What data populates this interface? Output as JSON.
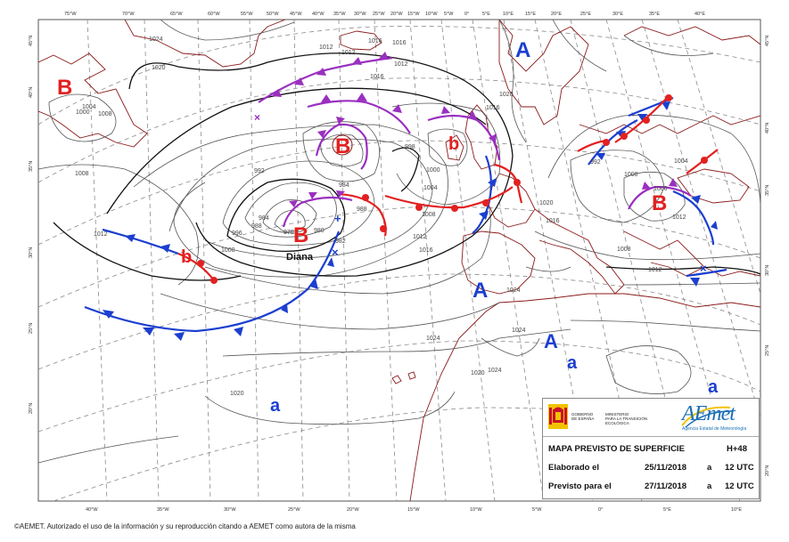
{
  "map": {
    "pressure_centers": [
      {
        "type": "B",
        "color": "#e32020",
        "size": "large"
      },
      {
        "type": "B",
        "color": "#e32020",
        "size": "large",
        "mark": "circled"
      },
      {
        "type": "b",
        "color": "#e32020",
        "size": "small"
      },
      {
        "type": "B",
        "color": "#e32020",
        "size": "large"
      },
      {
        "type": "b",
        "color": "#e32020",
        "size": "small"
      },
      {
        "type": "B",
        "color": "#e32020",
        "size": "large"
      },
      {
        "type": "A",
        "color": "#1b3fd0",
        "size": "large"
      },
      {
        "type": "A",
        "color": "#1b3fd0",
        "size": "large"
      },
      {
        "type": "A",
        "color": "#1b3fd0",
        "size": "large"
      },
      {
        "type": "a",
        "color": "#1b3fd0",
        "size": "small"
      },
      {
        "type": "a",
        "color": "#1b3fd0",
        "size": "small"
      },
      {
        "type": "a",
        "color": "#1b3fd0",
        "size": "small"
      }
    ],
    "storm_name": "Diana",
    "isobar_labels": [
      "1024",
      "1020",
      "1008",
      "1004",
      "1000",
      "1008",
      "1012",
      "1016",
      "1016",
      "1012",
      "998",
      "1000",
      "1004",
      "1008",
      "996",
      "992",
      "988",
      "984",
      "980",
      "984",
      "988",
      "976",
      "982",
      "1000",
      "1012",
      "1016",
      "1020",
      "1024",
      "1024",
      "1024",
      "1020",
      "1024",
      "1020",
      "1016",
      "1016",
      "1012",
      "1020",
      "1016",
      "1008",
      "1000",
      "1004",
      "1012",
      "1008",
      "1012",
      "992",
      "1012"
    ],
    "lon_labels_top": [
      "75°W",
      "70°W",
      "65°W",
      "60°W",
      "55°W",
      "50°W",
      "45°W",
      "40°W",
      "35°W",
      "30°W",
      "25°W",
      "20°W",
      "15°W",
      "10°W",
      "5°W",
      "0°",
      "5°E",
      "10°E",
      "15°E",
      "20°E",
      "25°E",
      "30°E",
      "35°E",
      "40°E"
    ],
    "lon_labels_bottom": [
      "40°W",
      "35°W",
      "30°W",
      "25°W",
      "20°W",
      "15°W",
      "10°W",
      "5°W",
      "0°",
      "5°E",
      "10°E"
    ],
    "lat_labels_left": [
      "45°N",
      "40°N",
      "35°N",
      "30°N",
      "25°N",
      "20°N"
    ],
    "lat_labels_right": [
      "45°N",
      "40°N",
      "35°N",
      "30°N",
      "25°N",
      "20°N"
    ],
    "colors": {
      "cold_front": "#1b3fd0",
      "warm_front": "#e32020",
      "occluded_front": "#9a2fc0",
      "isobar": "#555555",
      "isobar_bold": "#111111",
      "coast": "#8b1a1a",
      "grid": "#8a8a8a"
    }
  },
  "legend": {
    "gov_line1": "GOBIERNO",
    "gov_line2": "DE ESPAÑA",
    "ministry_line1": "MINISTERIO",
    "ministry_line2": "PARA LA TRANSICIÓN ECOLÓGICA",
    "logo_text": "AEmet",
    "logo_subtitle": "Agencia Estatal de Meteorología",
    "title": "MAPA PREVISTO DE SUPERFICIE",
    "horizon": "H+48",
    "elaborated_label": "Elaborado el",
    "elaborated_date": "25/11/2018",
    "elaborated_a": "a",
    "elaborated_time": "12 UTC",
    "forecast_label": "Previsto para el",
    "forecast_date": "27/11/2018",
    "forecast_a": "a",
    "forecast_time": "12 UTC"
  },
  "footer": {
    "copyright": "©AEMET. Autorizado el uso de la información y su reproducción citando a AEMET como autora de la misma"
  }
}
